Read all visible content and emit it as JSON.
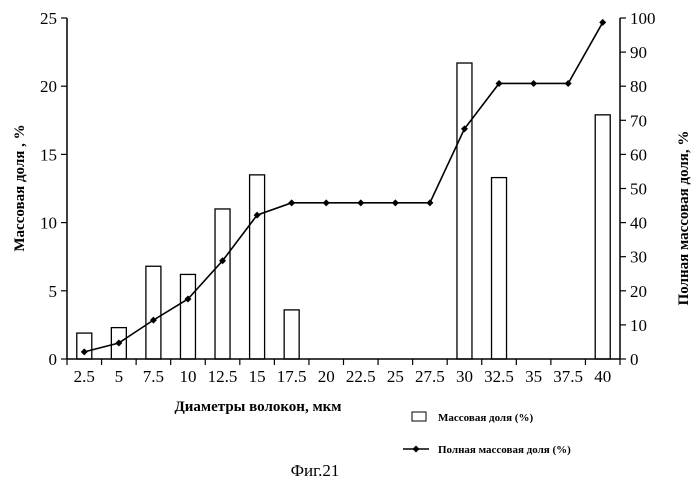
{
  "chart_data": {
    "type": "bar",
    "categories": [
      "2.5",
      "5",
      "7.5",
      "10",
      "12.5",
      "15",
      "17.5",
      "20",
      "22.5",
      "25",
      "27.5",
      "30",
      "32.5",
      "35",
      "37.5",
      "40"
    ],
    "series": [
      {
        "name": "Массовая доля (%)",
        "type": "bar",
        "axis": "left",
        "values": [
          1.9,
          2.3,
          6.8,
          6.2,
          11.0,
          13.5,
          3.6,
          null,
          null,
          null,
          null,
          21.7,
          13.3,
          null,
          null,
          17.9
        ]
      },
      {
        "name": "Полная массовая доля (%)",
        "type": "line",
        "axis": "right",
        "values": [
          2.1,
          4.7,
          11.4,
          17.6,
          28.8,
          42.2,
          45.8,
          45.8,
          45.8,
          45.8,
          45.8,
          67.5,
          80.8,
          80.8,
          80.8,
          98.7
        ]
      }
    ],
    "xlabel": "Диаметры волокон, мкм",
    "ylabel": "Массовая доля , %",
    "y2label": "Полная массовая доля, %",
    "ylim": [
      0,
      25
    ],
    "y2lim": [
      0,
      100
    ],
    "yticks": [
      "0",
      "5",
      "10",
      "15",
      "20",
      "25"
    ],
    "y2ticks": [
      "0",
      "10",
      "20",
      "30",
      "40",
      "50",
      "60",
      "70",
      "80",
      "90",
      "100"
    ],
    "legend_position": "bottom-right",
    "grid": false
  },
  "caption": "Фиг.21",
  "colors": {
    "bar_fill": "#ffffff",
    "ink": "#000000"
  }
}
